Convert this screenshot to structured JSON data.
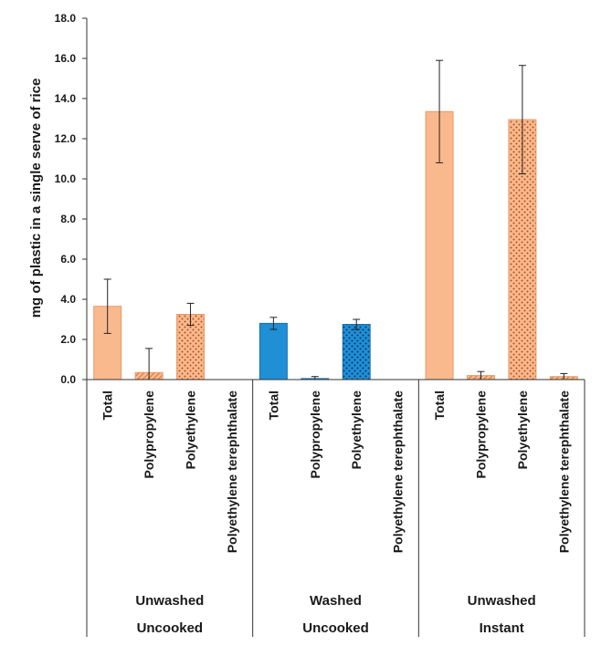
{
  "chart_data": {
    "type": "bar",
    "ylabel": "mg of plastic in a single serve of rice",
    "ylim": [
      0,
      18
    ],
    "yticks": [
      "0.0",
      "2.0",
      "4.0",
      "6.0",
      "8.0",
      "10.0",
      "12.0",
      "14.0",
      "16.0",
      "18.0"
    ],
    "grid": false,
    "groups": [
      {
        "label_top": "Unwashed",
        "label_bottom": "Uncooked",
        "bars": [
          {
            "category": "Total",
            "value": 3.65,
            "error": 1.35,
            "fill": "#f9b98d",
            "pattern": "solid"
          },
          {
            "category": "Polypropylene",
            "value": 0.35,
            "error": 1.2,
            "fill": "#f9b98d",
            "pattern": "hatch"
          },
          {
            "category": "Polyethylene",
            "value": 3.25,
            "error": 0.55,
            "fill": "#f9b98d",
            "pattern": "dots"
          },
          {
            "category": "Polyethylene terephthalate",
            "value": 0,
            "error": 0,
            "fill": "#f9b98d",
            "pattern": "hatch"
          }
        ]
      },
      {
        "label_top": "Washed",
        "label_bottom": "Uncooked",
        "bars": [
          {
            "category": "Total",
            "value": 2.8,
            "error": 0.3,
            "fill": "#1f8fd6",
            "pattern": "solid"
          },
          {
            "category": "Polypropylene",
            "value": 0.05,
            "error": 0.1,
            "fill": "#1f8fd6",
            "pattern": "hatch"
          },
          {
            "category": "Polyethylene",
            "value": 2.75,
            "error": 0.25,
            "fill": "#1f8fd6",
            "pattern": "dots"
          },
          {
            "category": "Polyethylene terephthalate",
            "value": 0,
            "error": 0,
            "fill": "#1f8fd6",
            "pattern": "hatch"
          }
        ]
      },
      {
        "label_top": "Unwashed",
        "label_bottom": "Instant",
        "bars": [
          {
            "category": "Total",
            "value": 13.35,
            "error": 2.55,
            "fill": "#f9b98d",
            "pattern": "solid"
          },
          {
            "category": "Polypropylene",
            "value": 0.2,
            "error": 0.2,
            "fill": "#f9b98d",
            "pattern": "hatch"
          },
          {
            "category": "Polyethylene",
            "value": 12.95,
            "error": 2.7,
            "fill": "#f9b98d",
            "pattern": "dots"
          },
          {
            "category": "Polyethylene terephthalate",
            "value": 0.15,
            "error": 0.15,
            "fill": "#f9b98d",
            "pattern": "hatch"
          }
        ]
      }
    ]
  }
}
